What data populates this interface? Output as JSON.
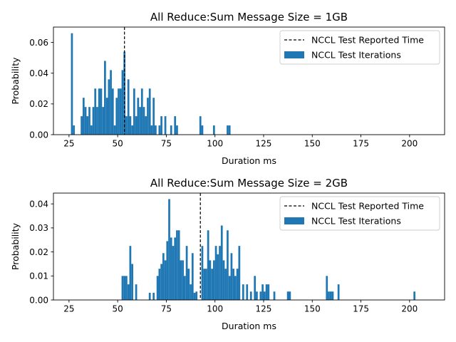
{
  "colors": {
    "bar": "#1f77b4",
    "reference_line": "#000000",
    "axes": "#000000",
    "background": "#ffffff"
  },
  "chart_data": [
    {
      "type": "bar",
      "title": "All Reduce:Sum Message Size = 1GB",
      "xlabel": "Duration ms",
      "ylabel": "Probability",
      "xlim": [
        17,
        218
      ],
      "ylim": [
        0,
        0.07
      ],
      "xticks": [
        25,
        50,
        75,
        100,
        125,
        150,
        175,
        200
      ],
      "yticks": [
        0.0,
        0.02,
        0.04,
        0.06
      ],
      "ytick_labels": [
        "0.00",
        "0.02",
        "0.04",
        "0.06"
      ],
      "bin_width": 1,
      "grid": false,
      "legend_position": "top-right",
      "reference_line": {
        "name": "NCCL Test Reported Time",
        "x": 53.5,
        "style": "dashed"
      },
      "series": [
        {
          "name": "NCCL Test Iterations",
          "bins": [
            {
              "x": 26.5,
              "y": 0.066
            },
            {
              "x": 27.5,
              "y": 0.006
            },
            {
              "x": 31.5,
              "y": 0.012
            },
            {
              "x": 32.5,
              "y": 0.024
            },
            {
              "x": 33.5,
              "y": 0.018
            },
            {
              "x": 34.5,
              "y": 0.012
            },
            {
              "x": 35.5,
              "y": 0.018
            },
            {
              "x": 36.5,
              "y": 0.006
            },
            {
              "x": 37.5,
              "y": 0.018
            },
            {
              "x": 38.5,
              "y": 0.03
            },
            {
              "x": 39.5,
              "y": 0.018
            },
            {
              "x": 40.5,
              "y": 0.03
            },
            {
              "x": 41.5,
              "y": 0.03
            },
            {
              "x": 42.5,
              "y": 0.018
            },
            {
              "x": 43.5,
              "y": 0.048
            },
            {
              "x": 44.5,
              "y": 0.024
            },
            {
              "x": 45.5,
              "y": 0.036
            },
            {
              "x": 46.5,
              "y": 0.042
            },
            {
              "x": 47.5,
              "y": 0.03
            },
            {
              "x": 48.5,
              "y": 0.006
            },
            {
              "x": 49.5,
              "y": 0.024
            },
            {
              "x": 50.5,
              "y": 0.03
            },
            {
              "x": 51.5,
              "y": 0.03
            },
            {
              "x": 52.5,
              "y": 0.042
            },
            {
              "x": 53.5,
              "y": 0.054
            },
            {
              "x": 54.5,
              "y": 0.012
            },
            {
              "x": 55.5,
              "y": 0.036
            },
            {
              "x": 56.5,
              "y": 0.012
            },
            {
              "x": 57.5,
              "y": 0.006
            },
            {
              "x": 58.5,
              "y": 0.03
            },
            {
              "x": 59.5,
              "y": 0.012
            },
            {
              "x": 60.5,
              "y": 0.024
            },
            {
              "x": 61.5,
              "y": 0.018
            },
            {
              "x": 62.5,
              "y": 0.03
            },
            {
              "x": 63.5,
              "y": 0.018
            },
            {
              "x": 64.5,
              "y": 0.012
            },
            {
              "x": 65.5,
              "y": 0.024
            },
            {
              "x": 66.5,
              "y": 0.03
            },
            {
              "x": 67.5,
              "y": 0.006
            },
            {
              "x": 68.5,
              "y": 0.024
            },
            {
              "x": 69.5,
              "y": 0.006
            },
            {
              "x": 71.5,
              "y": 0.006
            },
            {
              "x": 72.5,
              "y": 0.012
            },
            {
              "x": 74.5,
              "y": 0.012
            },
            {
              "x": 77.5,
              "y": 0.006
            },
            {
              "x": 79.5,
              "y": 0.012
            },
            {
              "x": 80.5,
              "y": 0.006
            },
            {
              "x": 92.5,
              "y": 0.012
            },
            {
              "x": 93.5,
              "y": 0.006
            },
            {
              "x": 99.5,
              "y": 0.006
            },
            {
              "x": 106.5,
              "y": 0.006
            },
            {
              "x": 107.5,
              "y": 0.006
            }
          ]
        }
      ]
    },
    {
      "type": "bar",
      "title": "All Reduce:Sum Message Size = 2GB",
      "xlabel": "Duration ms",
      "ylabel": "Probability",
      "xlim": [
        17,
        218
      ],
      "ylim": [
        0,
        0.0445
      ],
      "xticks": [
        25,
        50,
        75,
        100,
        125,
        150,
        175,
        200
      ],
      "yticks": [
        0.0,
        0.01,
        0.02,
        0.03,
        0.04
      ],
      "ytick_labels": [
        "0.00",
        "0.01",
        "0.02",
        "0.03",
        "0.04"
      ],
      "bin_width": 1,
      "grid": false,
      "legend_position": "top-right",
      "reference_line": {
        "name": "NCCL Test Reported Time",
        "x": 92.5,
        "style": "dashed"
      },
      "series": [
        {
          "name": "NCCL Test Iterations",
          "bins": [
            {
              "x": 52.5,
              "y": 0.01
            },
            {
              "x": 53.5,
              "y": 0.01
            },
            {
              "x": 54.5,
              "y": 0.01
            },
            {
              "x": 55.5,
              "y": 0.0065
            },
            {
              "x": 56.5,
              "y": 0.0225
            },
            {
              "x": 57.5,
              "y": 0.015
            },
            {
              "x": 59.5,
              "y": 0.0065
            },
            {
              "x": 66.5,
              "y": 0.003
            },
            {
              "x": 68.5,
              "y": 0.003
            },
            {
              "x": 70.5,
              "y": 0.01
            },
            {
              "x": 71.5,
              "y": 0.013
            },
            {
              "x": 72.5,
              "y": 0.015
            },
            {
              "x": 73.5,
              "y": 0.0195
            },
            {
              "x": 74.5,
              "y": 0.0165
            },
            {
              "x": 75.5,
              "y": 0.0245
            },
            {
              "x": 76.5,
              "y": 0.042
            },
            {
              "x": 77.5,
              "y": 0.026
            },
            {
              "x": 78.5,
              "y": 0.0225
            },
            {
              "x": 79.5,
              "y": 0.026
            },
            {
              "x": 80.5,
              "y": 0.029
            },
            {
              "x": 81.5,
              "y": 0.029
            },
            {
              "x": 82.5,
              "y": 0.0165
            },
            {
              "x": 83.5,
              "y": 0.0165
            },
            {
              "x": 84.5,
              "y": 0.01
            },
            {
              "x": 85.5,
              "y": 0.0225
            },
            {
              "x": 86.5,
              "y": 0.013
            },
            {
              "x": 87.5,
              "y": 0.0065
            },
            {
              "x": 88.5,
              "y": 0.0195
            },
            {
              "x": 89.5,
              "y": 0.003
            },
            {
              "x": 90.5,
              "y": 0.0035
            },
            {
              "x": 93.5,
              "y": 0.0225
            },
            {
              "x": 94.5,
              "y": 0.013
            },
            {
              "x": 95.5,
              "y": 0.013
            },
            {
              "x": 96.5,
              "y": 0.029
            },
            {
              "x": 97.5,
              "y": 0.0165
            },
            {
              "x": 98.5,
              "y": 0.013
            },
            {
              "x": 99.5,
              "y": 0.0165
            },
            {
              "x": 100.5,
              "y": 0.0225
            },
            {
              "x": 101.5,
              "y": 0.019
            },
            {
              "x": 102.5,
              "y": 0.0225
            },
            {
              "x": 103.5,
              "y": 0.031
            },
            {
              "x": 104.5,
              "y": 0.0165
            },
            {
              "x": 105.5,
              "y": 0.013
            },
            {
              "x": 106.5,
              "y": 0.029
            },
            {
              "x": 107.5,
              "y": 0.01
            },
            {
              "x": 108.5,
              "y": 0.0195
            },
            {
              "x": 109.5,
              "y": 0.013
            },
            {
              "x": 110.5,
              "y": 0.01
            },
            {
              "x": 111.5,
              "y": 0.013
            },
            {
              "x": 112.5,
              "y": 0.0225
            },
            {
              "x": 114.5,
              "y": 0.0065
            },
            {
              "x": 116.5,
              "y": 0.0065
            },
            {
              "x": 118.5,
              "y": 0.0035
            },
            {
              "x": 120.5,
              "y": 0.01
            },
            {
              "x": 121.5,
              "y": 0.0035
            },
            {
              "x": 123.5,
              "y": 0.0035
            },
            {
              "x": 124.5,
              "y": 0.0065
            },
            {
              "x": 125.5,
              "y": 0.0035
            },
            {
              "x": 126.5,
              "y": 0.0065
            },
            {
              "x": 127.5,
              "y": 0.0065
            },
            {
              "x": 130.5,
              "y": 0.0035
            },
            {
              "x": 137.5,
              "y": 0.0035
            },
            {
              "x": 138.5,
              "y": 0.0035
            },
            {
              "x": 157.5,
              "y": 0.01
            },
            {
              "x": 158.5,
              "y": 0.0035
            },
            {
              "x": 159.5,
              "y": 0.0035
            },
            {
              "x": 160.5,
              "y": 0.0035
            },
            {
              "x": 163.5,
              "y": 0.0065
            },
            {
              "x": 202.5,
              "y": 0.0035
            }
          ]
        }
      ]
    }
  ]
}
